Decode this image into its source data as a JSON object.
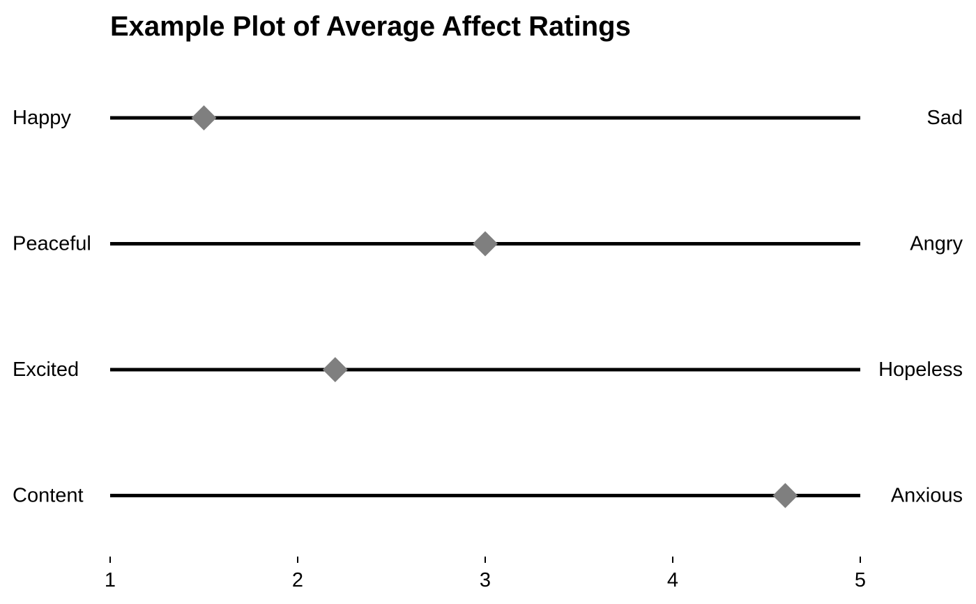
{
  "chart_data": {
    "type": "scatter",
    "title": "Example Plot of Average Affect Ratings",
    "xlabel": "",
    "ylabel": "",
    "xlim": [
      1,
      5
    ],
    "x_ticks": [
      "1",
      "2",
      "3",
      "4",
      "5"
    ],
    "grid": false,
    "legend": "none",
    "marker": "diamond",
    "marker_color": "#7f7f7f",
    "line_color": "#000000",
    "rows": [
      {
        "left_label": "Happy",
        "right_label": "Sad",
        "value": 1.5
      },
      {
        "left_label": "Peaceful",
        "right_label": "Angry",
        "value": 3.0
      },
      {
        "left_label": "Excited",
        "right_label": "Hopeless",
        "value": 2.2
      },
      {
        "left_label": "Content",
        "right_label": "Anxious",
        "value": 4.6
      }
    ]
  }
}
